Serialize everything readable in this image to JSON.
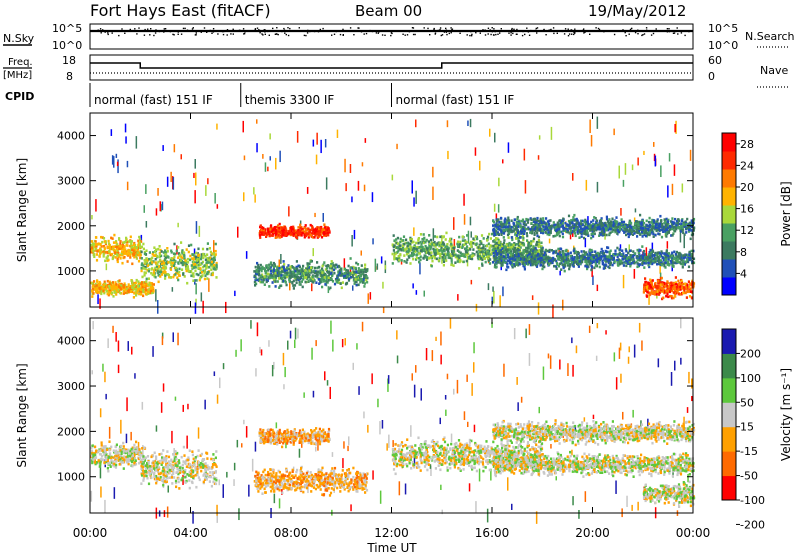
{
  "header": {
    "title": "Fort Hays East (fitACF)",
    "beam": "Beam 00",
    "date": "19/May/2012"
  },
  "top_panels": {
    "nsky_label": "N.Sky",
    "nsky_ticks": [
      "10^5",
      "10^0"
    ],
    "nsearch_label": "N.Search",
    "nsearch_ticks": [
      "10^5",
      "10^0"
    ],
    "freq_label_1": "Freq.",
    "freq_label_2": "[MHz]",
    "freq_ticks": [
      "18",
      "8"
    ],
    "nave_label": "Nave",
    "nave_ticks": [
      "60",
      "0"
    ],
    "cpid_label": "CPID"
  },
  "cpid_segments": [
    {
      "label": "normal (fast) 151 IF",
      "start_h": 0,
      "end_h": 6
    },
    {
      "label": "themis 3300 IF",
      "start_h": 6,
      "end_h": 12
    },
    {
      "label": "normal (fast) 151 IF",
      "start_h": 12,
      "end_h": 24
    }
  ],
  "colors": {
    "power": [
      "#0000ff",
      "#2050b8",
      "#3c7a60",
      "#49a062",
      "#a9d83a",
      "#ffb300",
      "#ff7a00",
      "#ff2a00",
      "#ff0000"
    ],
    "velocity": [
      "#ff0000",
      "#ff6a00",
      "#ffa000",
      "#c8c8c8",
      "#5dc83c",
      "#3c8a4a",
      "#1a1ab0"
    ]
  },
  "chart_data": [
    {
      "type": "heatmap",
      "ylabel": "Slant Range [km]",
      "xlabel": "Time UT",
      "xlim_hours": [
        0,
        24
      ],
      "ylim": [
        200,
        4500
      ],
      "x_tick_labels": [
        "00:00",
        "04:00",
        "08:00",
        "12:00",
        "16:00",
        "20:00",
        "00:00"
      ],
      "y_tick_labels": [
        "1000",
        "2000",
        "3000",
        "4000"
      ],
      "colorbar": {
        "label": "Power [dB]",
        "ticks": [
          "28",
          "24",
          "20",
          "16",
          "12",
          "8",
          "4"
        ],
        "range": [
          0,
          30
        ]
      },
      "features": [
        {
          "t0": 0,
          "t1": 2,
          "r": 1500,
          "w": 250,
          "v": 18
        },
        {
          "t0": 2,
          "t1": 5,
          "r": 1200,
          "w": 350,
          "v": 14
        },
        {
          "t0": 6.7,
          "t1": 9.5,
          "r": 1900,
          "w": 120,
          "v": 26
        },
        {
          "t0": 6.5,
          "t1": 11,
          "r": 950,
          "w": 250,
          "v": 10
        },
        {
          "t0": 12,
          "t1": 18,
          "r": 1500,
          "w": 300,
          "v": 12
        },
        {
          "t0": 16,
          "t1": 24,
          "r": 1300,
          "w": 200,
          "v": 8
        },
        {
          "t0": 16,
          "t1": 24,
          "r": 2000,
          "w": 200,
          "v": 8
        },
        {
          "t0": 22,
          "t1": 24,
          "r": 650,
          "w": 200,
          "v": 24
        },
        {
          "t0": 0,
          "t1": 2.5,
          "r": 650,
          "w": 150,
          "v": 18
        }
      ]
    },
    {
      "type": "heatmap",
      "ylabel": "Slant Range [km]",
      "xlabel": "Time UT",
      "xlim_hours": [
        0,
        24
      ],
      "ylim": [
        200,
        4500
      ],
      "x_tick_labels": [
        "00:00",
        "04:00",
        "08:00",
        "12:00",
        "16:00",
        "20:00",
        "00:00"
      ],
      "y_tick_labels": [
        "1000",
        "2000",
        "3000",
        "4000"
      ],
      "colorbar": {
        "label": "Velocity [m s⁻¹]",
        "ticks": [
          "200",
          "100",
          "50",
          "15",
          "-15",
          "-50",
          "-100",
          "-200"
        ],
        "range": [
          -250,
          250
        ]
      },
      "features": [
        {
          "t0": 0,
          "t1": 2,
          "r": 1500,
          "w": 250,
          "v": 0
        },
        {
          "t0": 2,
          "t1": 5,
          "r": 1200,
          "w": 350,
          "v": 0
        },
        {
          "t0": 6.7,
          "t1": 9.5,
          "r": 1900,
          "w": 150,
          "v": -60
        },
        {
          "t0": 6.5,
          "t1": 11,
          "r": 950,
          "w": 250,
          "v": -60
        },
        {
          "t0": 12,
          "t1": 18,
          "r": 1500,
          "w": 300,
          "v": 0
        },
        {
          "t0": 16,
          "t1": 24,
          "r": 1300,
          "w": 200,
          "v": 0
        },
        {
          "t0": 16,
          "t1": 24,
          "r": 2000,
          "w": 200,
          "v": 0
        },
        {
          "t0": 22,
          "t1": 24,
          "r": 650,
          "w": 200,
          "v": 0
        }
      ]
    }
  ]
}
